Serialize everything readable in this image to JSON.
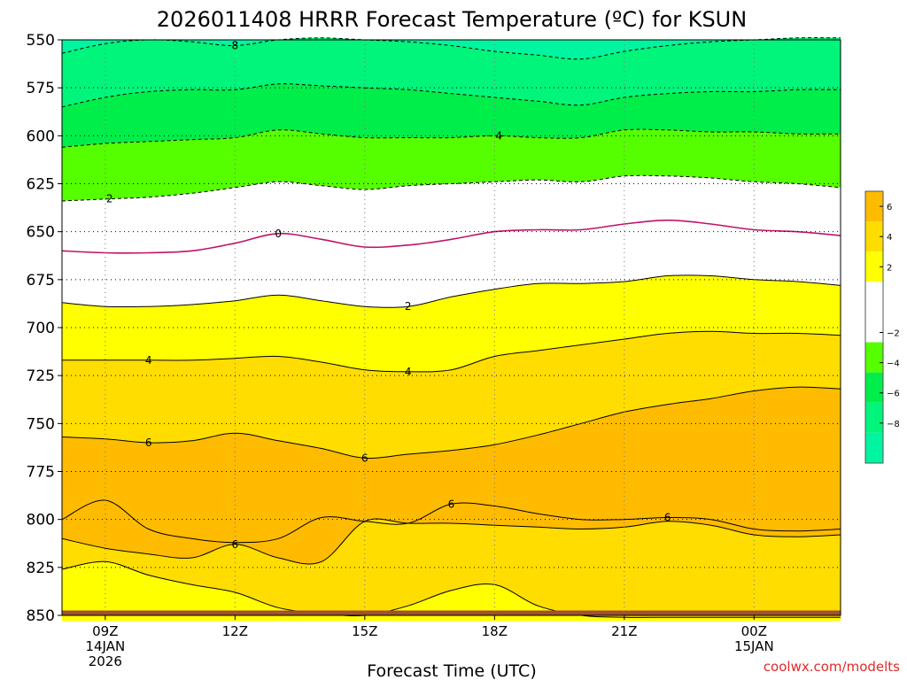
{
  "chart_data": {
    "type": "heatmap",
    "title": "2026011408 HRRR Forecast Temperature (ºC) for KSUN",
    "xlabel": "Forecast Time (UTC)",
    "credit": "coolwx.com/modelts",
    "y_axis": {
      "range": [
        550,
        850
      ],
      "inverted": true,
      "ticks": [
        550,
        575,
        600,
        625,
        650,
        675,
        700,
        725,
        750,
        775,
        800,
        825,
        850
      ]
    },
    "x_axis": {
      "hours": [
        8,
        9,
        10,
        11,
        12,
        13,
        14,
        15,
        16,
        17,
        18,
        19,
        20,
        21,
        22,
        23,
        24,
        25,
        26
      ],
      "range": [
        8,
        26
      ],
      "ticks": [
        {
          "hour": 9,
          "lines": [
            "09Z",
            "14JAN",
            "2026"
          ]
        },
        {
          "hour": 12,
          "lines": [
            "12Z"
          ]
        },
        {
          "hour": 15,
          "lines": [
            "15Z"
          ]
        },
        {
          "hour": 18,
          "lines": [
            "18Z"
          ]
        },
        {
          "hour": 21,
          "lines": [
            "21Z"
          ]
        },
        {
          "hour": 24,
          "lines": [
            "00Z",
            "15JAN"
          ]
        }
      ]
    },
    "grid": true,
    "ground": {
      "level": 853,
      "color": "#a0522d"
    },
    "colorbar": {
      "placement": "right",
      "bands": [
        {
          "min": -10,
          "max": -8,
          "color": "#00f5a0"
        },
        {
          "min": -8,
          "max": -6,
          "color": "#00f57a"
        },
        {
          "min": -6,
          "max": -4,
          "color": "#00ee4a"
        },
        {
          "min": -4,
          "max": -2,
          "color": "#55ff00"
        },
        {
          "min": -2,
          "max": 2,
          "color": "#ffffff"
        },
        {
          "min": 2,
          "max": 4,
          "color": "#ffff00"
        },
        {
          "min": 4,
          "max": 6,
          "color": "#ffdd00"
        },
        {
          "min": 6,
          "max": 8,
          "color": "#ffbb00"
        }
      ],
      "labels": [
        "6",
        "4",
        "2",
        "−2",
        "−4",
        "−6",
        "−8"
      ]
    },
    "isotherms": [
      {
        "temp": -10,
        "levels": [
          550,
          550,
          550,
          550,
          550,
          550,
          550,
          550,
          550,
          550,
          550,
          550,
          550,
          550,
          550,
          550,
          550,
          550,
          550
        ]
      },
      {
        "temp": -8,
        "levels": [
          557,
          552,
          550,
          551,
          553,
          550,
          549,
          550,
          551,
          553,
          556,
          558,
          560,
          556,
          553,
          551,
          550,
          549,
          549
        ],
        "label": "-8",
        "labels_at": [
          12.0
        ]
      },
      {
        "temp": -6,
        "levels": [
          585,
          580,
          577,
          576,
          576,
          573,
          574,
          575,
          576,
          578,
          580,
          582,
          584,
          580,
          578,
          577,
          577,
          576,
          576
        ]
      },
      {
        "temp": -4,
        "levels": [
          606,
          604,
          603,
          602,
          601,
          597,
          599,
          601,
          601,
          601,
          600,
          601,
          601,
          597,
          597,
          598,
          598,
          599,
          599
        ],
        "label": "-4",
        "labels_at": [
          18.1
        ]
      },
      {
        "temp": -2,
        "levels": [
          634,
          633,
          632,
          630,
          627,
          624,
          626,
          628,
          626,
          625,
          624,
          623,
          624,
          621,
          621,
          622,
          624,
          625,
          627
        ],
        "label": "-2",
        "labels_at": [
          9.1
        ]
      },
      {
        "temp": 0,
        "levels": [
          660,
          661,
          661,
          660,
          656,
          651,
          654,
          658,
          657,
          654,
          650,
          649,
          649,
          646,
          644,
          646,
          649,
          650,
          652
        ],
        "label": "0",
        "labels_at": [
          13.0
        ]
      },
      {
        "temp": 2,
        "levels": [
          687,
          689,
          689,
          688,
          686,
          683,
          686,
          689,
          689,
          684,
          680,
          677,
          677,
          676,
          673,
          673,
          675,
          676,
          678
        ],
        "label": "2",
        "labels_at": [
          16.0
        ]
      },
      {
        "temp": 4,
        "levels": [
          717,
          717,
          717,
          717,
          716,
          715,
          718,
          722,
          723,
          722,
          715,
          712,
          709,
          706,
          703,
          702,
          703,
          703,
          704
        ],
        "label": "4",
        "labels_at": [
          10.0,
          16.0
        ]
      },
      {
        "temp": 6,
        "levels": [
          757,
          758,
          760,
          759,
          755,
          759,
          763,
          768,
          766,
          764,
          761,
          756,
          750,
          744,
          740,
          737,
          733,
          731,
          732
        ],
        "label": "6",
        "labels_at": [
          10.0,
          15.0
        ]
      },
      {
        "temp": 6,
        "levels": [
          800,
          790,
          805,
          810,
          812,
          810,
          799,
          801,
          802,
          792,
          793,
          797,
          800,
          800,
          799,
          800,
          805,
          806,
          805
        ],
        "label": "6",
        "labels_at": [
          17.0,
          22.0
        ]
      },
      {
        "temp": 6,
        "levels": [
          810,
          815,
          818,
          820,
          813,
          820,
          822,
          801,
          802,
          802,
          803,
          804,
          805,
          804,
          801,
          803,
          808,
          809,
          808
        ],
        "label": "6",
        "labels_at": [
          12.0
        ]
      },
      {
        "temp": 4,
        "levels": [
          826,
          822,
          829,
          834,
          838,
          846,
          849,
          850,
          845,
          837,
          834,
          845,
          850,
          851,
          851,
          851,
          851,
          851,
          851
        ]
      },
      {
        "temp": 2,
        "levels": [
          853,
          853,
          853,
          853,
          853,
          853,
          853,
          853,
          853,
          853,
          853,
          853,
          853,
          853,
          853,
          853,
          853,
          853,
          853
        ]
      }
    ]
  }
}
